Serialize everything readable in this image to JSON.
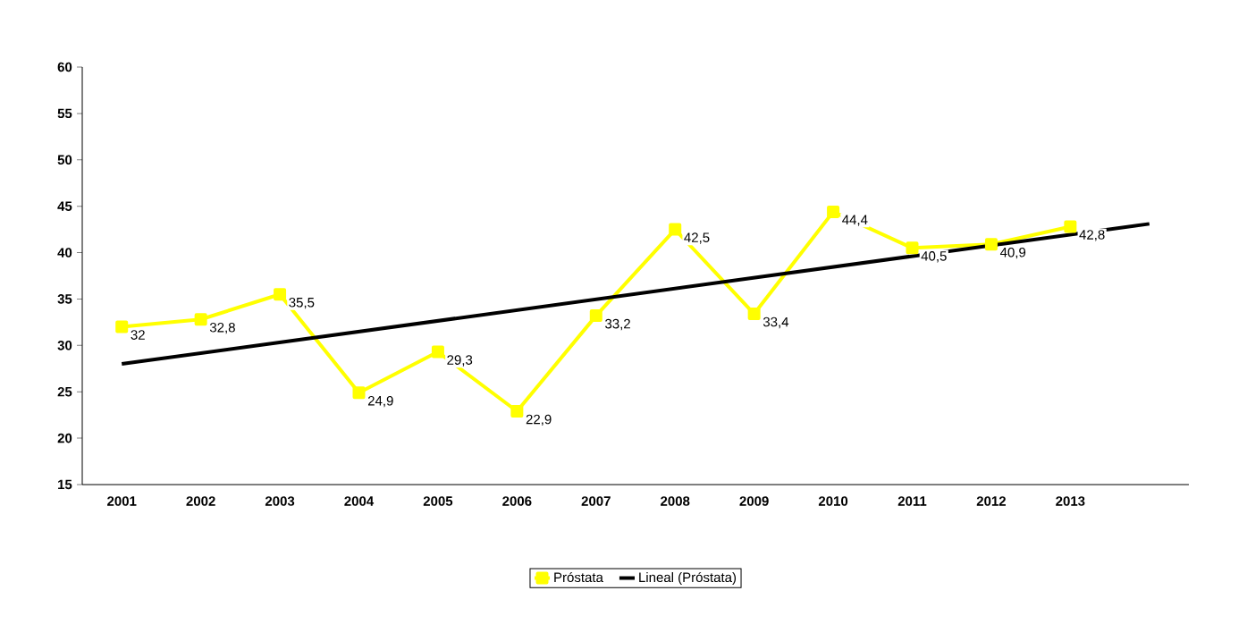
{
  "chart_data": {
    "type": "line",
    "categories": [
      "2001",
      "2002",
      "2003",
      "2004",
      "2005",
      "2006",
      "2007",
      "2008",
      "2009",
      "2010",
      "2011",
      "2012",
      "2013",
      null
    ],
    "series": [
      {
        "name": "Próstata",
        "color": "#ffff00",
        "marker": "square",
        "values": [
          32,
          32.8,
          35.5,
          24.9,
          29.3,
          22.9,
          33.2,
          42.5,
          33.4,
          44.4,
          40.5,
          40.9,
          42.8,
          null
        ],
        "value_labels": [
          "32",
          "32,8",
          "35,5",
          "24,9",
          "29,3",
          "22,9",
          "33,2",
          "42,5",
          "33,4",
          "44,4",
          "40,5",
          "40,9",
          "42,8",
          null
        ]
      },
      {
        "name": "Lineal (Próstata)",
        "color": "#000000",
        "marker": "none",
        "values": [
          28,
          null,
          null,
          null,
          null,
          null,
          null,
          null,
          null,
          null,
          null,
          null,
          null,
          43.1
        ]
      }
    ],
    "ylim": [
      15,
      60
    ],
    "yticks": [
      15,
      20,
      25,
      30,
      35,
      40,
      45,
      50,
      55,
      60
    ],
    "grid": false,
    "legend": "bottom"
  }
}
